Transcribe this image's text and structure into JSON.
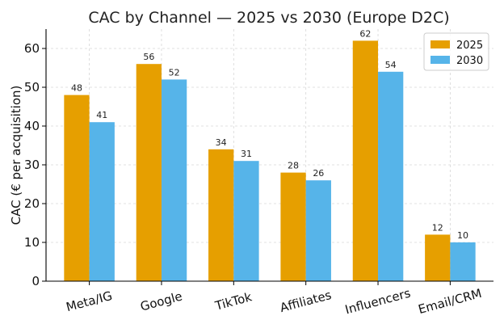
{
  "chart_data": {
    "type": "bar",
    "title": "CAC by Channel — 2025 vs 2030 (Europe D2C)",
    "xlabel": "",
    "ylabel": "CAC (€ per acquisition)",
    "categories": [
      "Meta/IG",
      "Google",
      "TikTok",
      "Affiliates",
      "Influencers",
      "Email/CRM"
    ],
    "series": [
      {
        "name": "2025",
        "values": [
          48,
          56,
          34,
          28,
          62,
          12
        ],
        "color": "#E69F00"
      },
      {
        "name": "2030",
        "values": [
          41,
          52,
          31,
          26,
          54,
          10
        ],
        "color": "#56B4E9"
      }
    ],
    "ylim": [
      0,
      65
    ],
    "yticks": [
      0,
      10,
      20,
      30,
      40,
      50,
      60
    ],
    "grid": true,
    "legend_position": "top-right"
  }
}
